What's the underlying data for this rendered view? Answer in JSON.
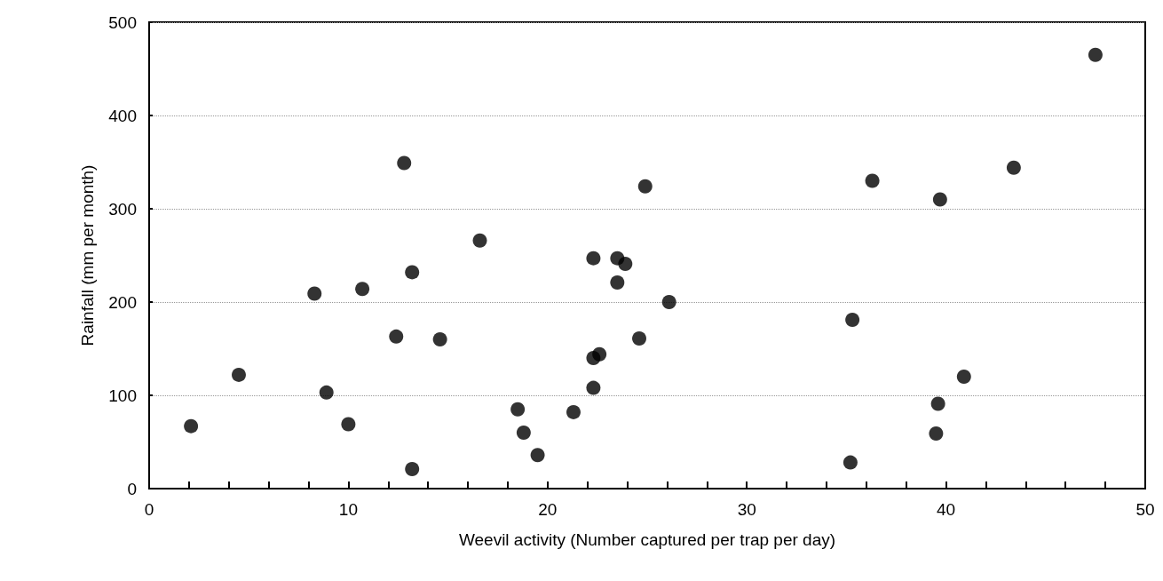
{
  "chart_data": {
    "type": "scatter",
    "xlabel": "Weevil activity (Number captured per trap per day)",
    "ylabel": "Rainfall (mm per month)",
    "x": [
      2.1,
      4.5,
      8.3,
      8.9,
      10.0,
      10.7,
      12.4,
      12.8,
      13.2,
      13.2,
      14.6,
      16.6,
      18.5,
      18.8,
      19.5,
      21.3,
      22.3,
      22.3,
      22.6,
      22.3,
      23.5,
      23.9,
      23.5,
      24.6,
      24.9,
      26.1,
      35.3,
      35.2,
      36.3,
      39.7,
      43.4,
      47.5,
      40.9,
      39.6,
      39.5
    ],
    "values": [
      67,
      122,
      209,
      103,
      69,
      214,
      163,
      349,
      232,
      21,
      160,
      266,
      85,
      60,
      36,
      82,
      247,
      140,
      144,
      108,
      247,
      241,
      221,
      161,
      324,
      200,
      181,
      28,
      330,
      310,
      344,
      465,
      120,
      91,
      59
    ],
    "color": "#000000",
    "marker": "circle",
    "grid": "y",
    "xlim": [
      0,
      50
    ],
    "xticks": [
      0,
      {
        "value": 2,
        "label": null
      },
      {
        "value": 4,
        "label": null
      },
      {
        "value": 6,
        "label": null
      },
      {
        "value": 8,
        "label": null
      },
      10,
      {
        "value": 12,
        "label": null
      },
      {
        "value": 14,
        "label": null
      },
      {
        "value": 16,
        "label": null
      },
      {
        "value": 18,
        "label": null
      },
      20,
      {
        "value": 22,
        "label": null
      },
      {
        "value": 24,
        "label": null
      },
      {
        "value": 26,
        "label": null
      },
      {
        "value": 28,
        "label": null
      },
      30,
      {
        "value": 32,
        "label": null
      },
      {
        "value": 34,
        "label": null
      },
      {
        "value": 36,
        "label": null
      },
      {
        "value": 38,
        "label": null
      },
      40,
      {
        "value": 42,
        "label": null
      },
      {
        "value": 44,
        "label": null
      },
      {
        "value": 46,
        "label": null
      },
      {
        "value": 48,
        "label": null
      },
      50
    ],
    "ylim": [
      0,
      500
    ],
    "yticks": [
      0,
      100,
      200,
      300,
      400,
      500
    ]
  }
}
